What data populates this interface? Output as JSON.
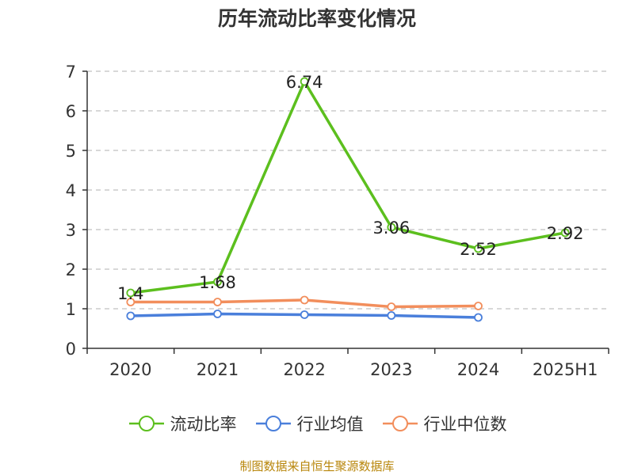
{
  "chart_data": {
    "type": "line",
    "title": "历年流动比率变化情况",
    "categories": [
      "2020",
      "2021",
      "2022",
      "2023",
      "2024",
      "2025H1"
    ],
    "ylim": [
      0,
      7
    ],
    "yticks": [
      "0",
      "1",
      "2",
      "3",
      "4",
      "5",
      "6",
      "7"
    ],
    "grid": true,
    "legend_position": "bottom",
    "series": [
      {
        "name": "流动比率",
        "color": "#5cbf1e",
        "values": [
          1.4,
          1.68,
          6.74,
          3.06,
          2.52,
          2.92
        ],
        "labels": [
          "1.4",
          "1.68",
          "6.74",
          "3.06",
          "2.52",
          "2.92"
        ]
      },
      {
        "name": "行业均值",
        "color": "#4a7fdb",
        "values": [
          0.82,
          0.87,
          0.85,
          0.83,
          0.78,
          null
        ]
      },
      {
        "name": "行业中位数",
        "color": "#f28e5c",
        "values": [
          1.17,
          1.17,
          1.22,
          1.05,
          1.07,
          null
        ]
      }
    ]
  },
  "source": "制图数据来自恒生聚源数据库"
}
